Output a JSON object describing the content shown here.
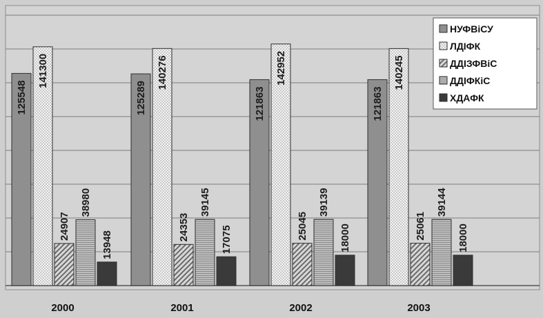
{
  "chart_data": {
    "type": "bar",
    "categories": [
      "2000",
      "2001",
      "2002",
      "2003"
    ],
    "ylim": [
      0,
      160000
    ],
    "grid": true,
    "legend_position": "top-right",
    "series": [
      {
        "name": "НУФВіСУ",
        "values": [
          125548,
          125289,
          121863,
          121863
        ],
        "pattern": "solid-gray"
      },
      {
        "name": "ЛДІФК",
        "values": [
          141300,
          140276,
          142952,
          140245
        ],
        "pattern": "checker"
      },
      {
        "name": "ДДІЗФВіС",
        "values": [
          24907,
          24353,
          25045,
          25061
        ],
        "pattern": "diagonal"
      },
      {
        "name": "ДДІФКіС",
        "values": [
          38980,
          39145,
          39139,
          39144
        ],
        "pattern": "horizontal"
      },
      {
        "name": "ХДАФК",
        "values": [
          13948,
          17075,
          18000,
          18000
        ],
        "pattern": "dark"
      }
    ],
    "value_labels": [
      [
        "125548",
        "125289",
        "121863",
        "121863"
      ],
      [
        "141300",
        "140276",
        "142952",
        "140245"
      ],
      [
        "24907",
        "24353",
        "25045",
        "25061"
      ],
      [
        "38980",
        "39145",
        "39139",
        "39144"
      ],
      [
        "13948",
        "17075",
        "18000",
        "18000"
      ]
    ]
  }
}
